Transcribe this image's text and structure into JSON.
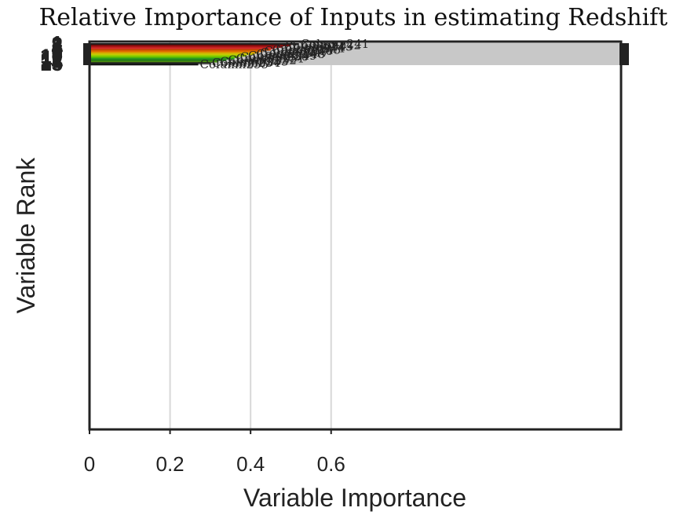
{
  "chart_data": {
    "type": "bar",
    "orientation": "horizontal",
    "title": "Relative Importance of Inputs in estimating Redshift",
    "xlabel": "Variable Importance",
    "ylabel": "Variable Rank",
    "xlim": [
      0,
      1.32
    ],
    "x_ticks": [
      "0",
      "0.2",
      "0.4",
      "0.6"
    ],
    "x_tick_values": [
      0,
      0.2,
      0.4,
      0.6
    ],
    "grid": "vertical",
    "ranks": [
      "1",
      "2",
      "3",
      "4",
      "5",
      "6",
      "7",
      "8",
      "9",
      "10",
      "11",
      "12",
      "13",
      "14",
      "15"
    ],
    "bar_labels": [
      "Column241",
      "Column242",
      "Column243",
      "Column244",
      "Column245",
      "Column246",
      "Column247",
      "Column248",
      "Column249",
      "Column250",
      "Column251",
      "Column252",
      "Column253",
      "Column254",
      "Column255"
    ],
    "values": [
      0.52,
      0.5,
      0.48,
      0.46,
      0.45,
      0.43,
      0.42,
      0.41,
      0.39,
      0.37,
      0.36,
      0.34,
      0.32,
      0.3,
      0.27
    ],
    "bar_colors": [
      "#1a1a1a",
      "#7a0c0c",
      "#b21818",
      "#d42a2a",
      "#c44a00",
      "#e06a00",
      "#d8a000",
      "#c8c800",
      "#9ad000",
      "#5ec000",
      "#2a9a20",
      "#1e7a18",
      "#4a8a10",
      "#222222",
      "#111111"
    ],
    "background_band_color": "#c8c8c8"
  }
}
